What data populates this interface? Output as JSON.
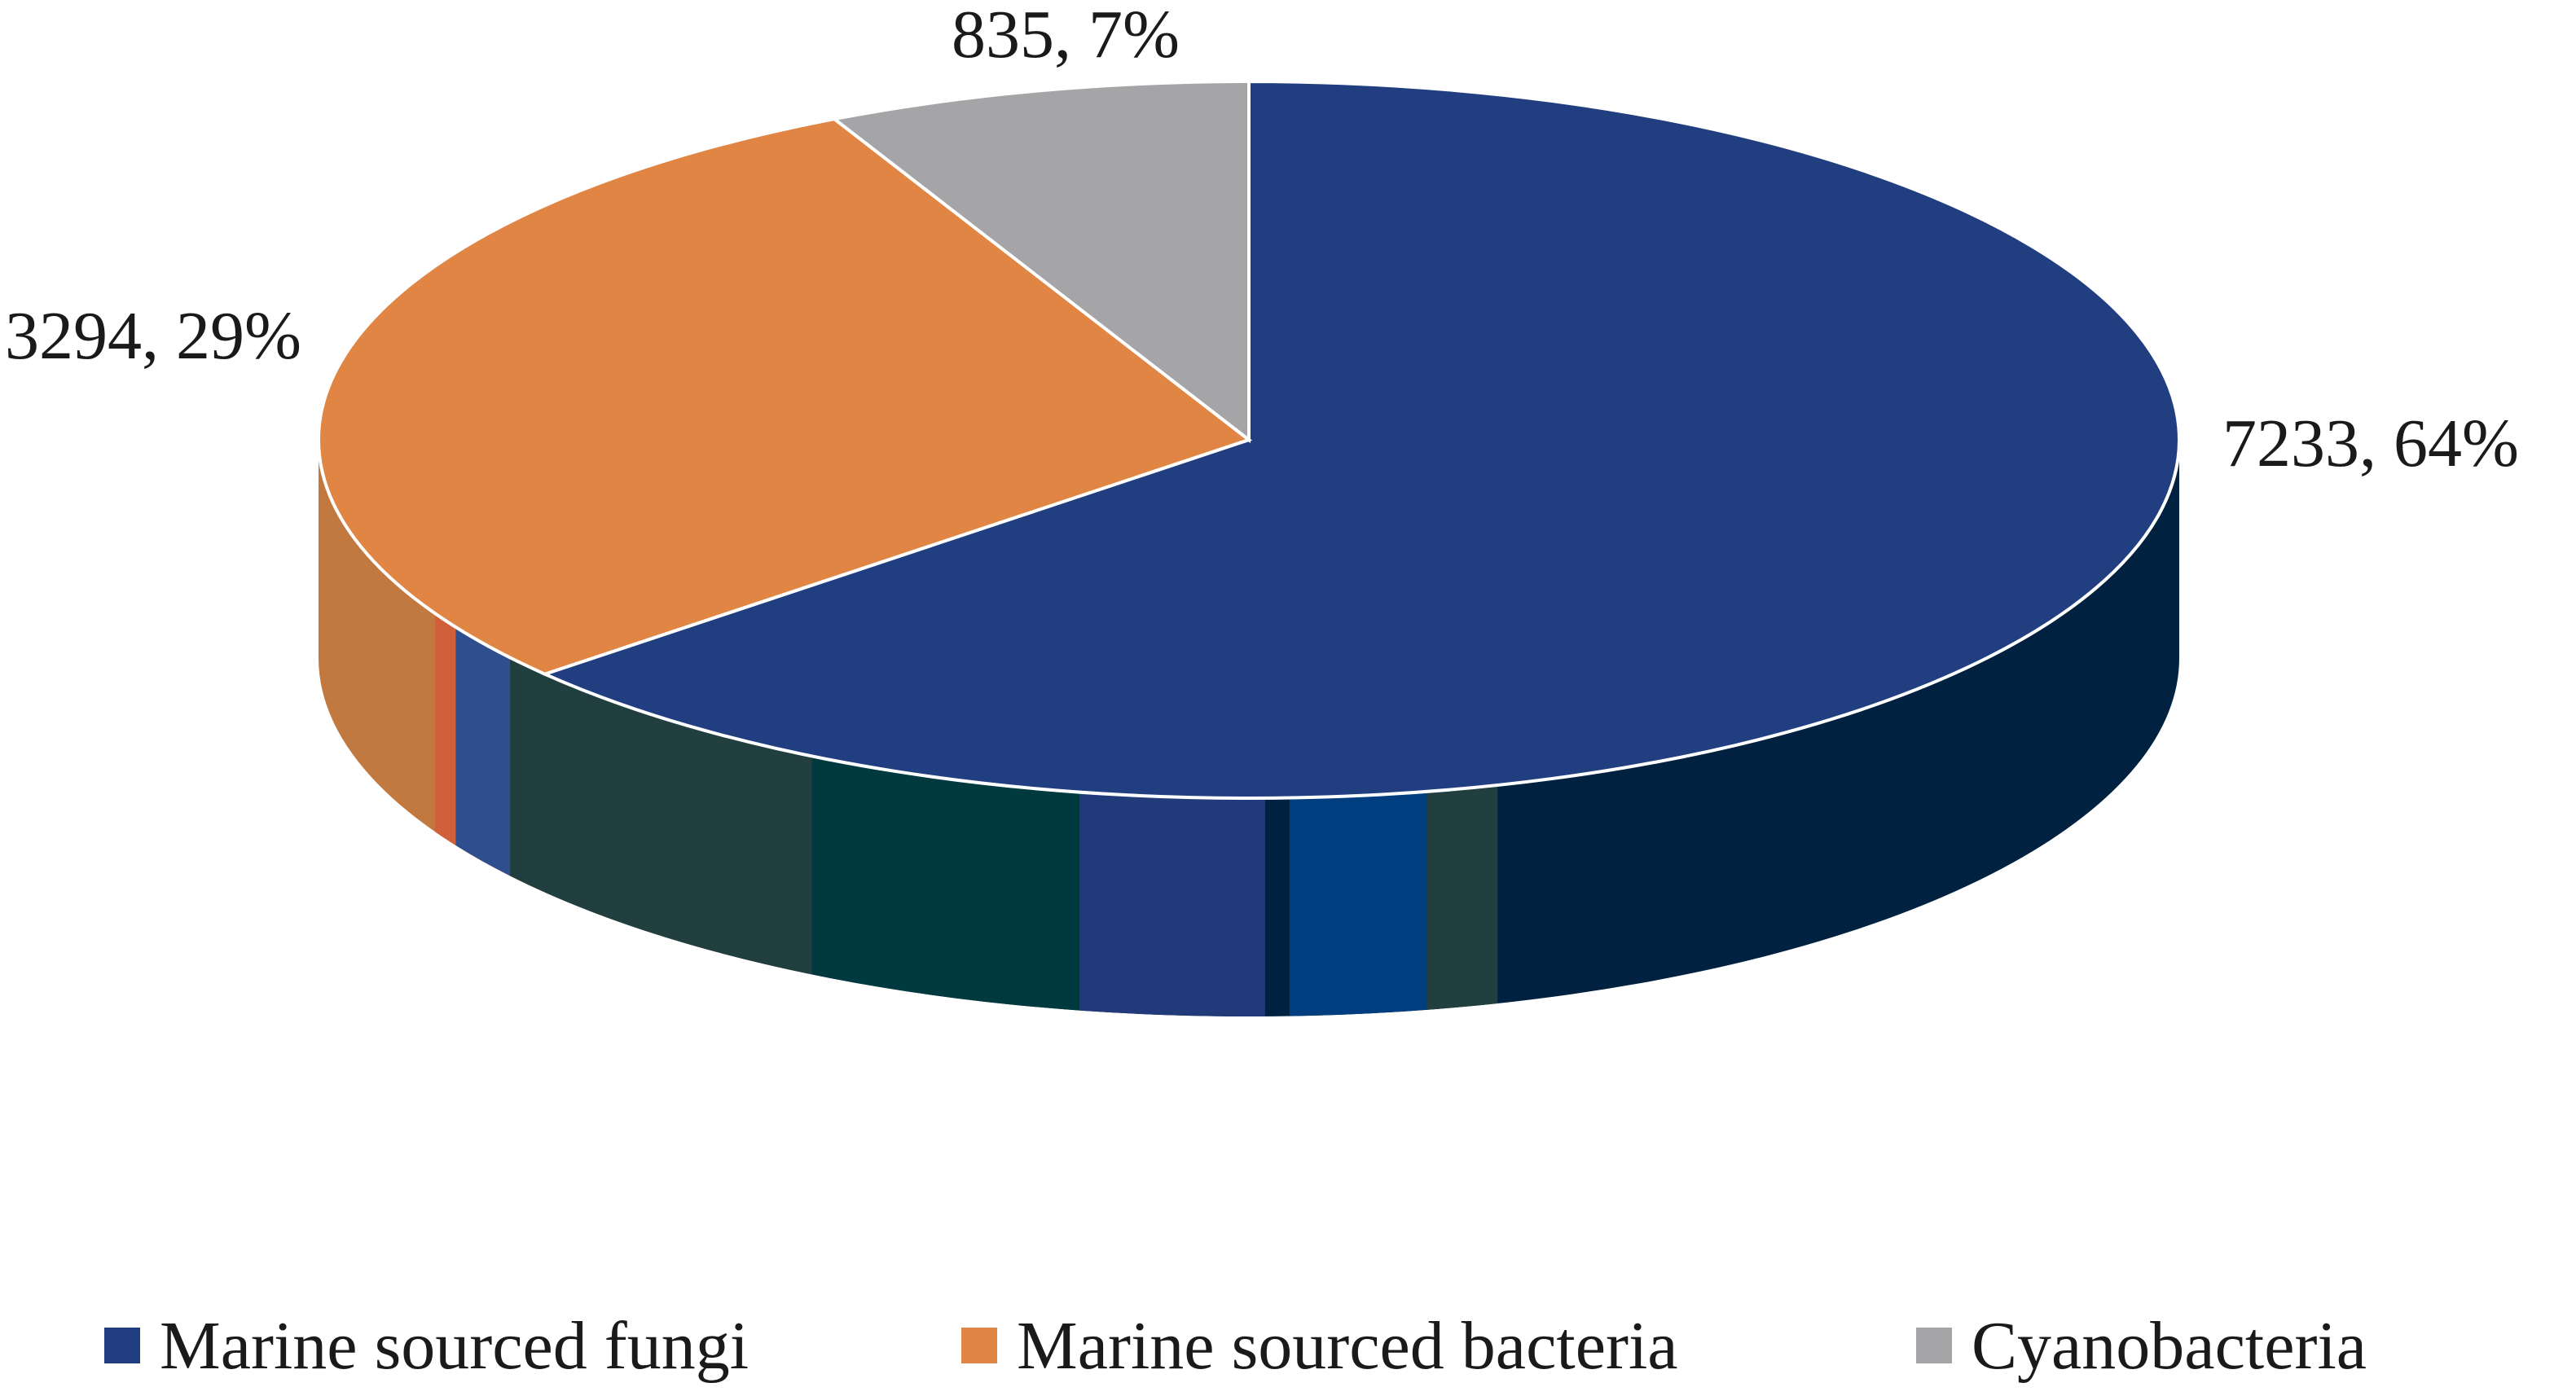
{
  "chart_data": {
    "type": "pie",
    "style": "3d",
    "title": "",
    "categories": [
      "Marine sourced fungi",
      "Marine sourced bacteria",
      "Cyanobacteria"
    ],
    "values": [
      7233,
      3294,
      835
    ],
    "percentages": [
      64,
      29,
      7
    ],
    "data_labels": [
      "7233, 64%",
      "3294, 29%",
      "835, 7%"
    ],
    "colors": [
      "#213f80",
      "#e08543",
      "#a5a5a8"
    ],
    "side_colors": [
      "#00213f",
      "#c2793f",
      "#a5a5a8"
    ],
    "legend_placement": "bottom"
  }
}
